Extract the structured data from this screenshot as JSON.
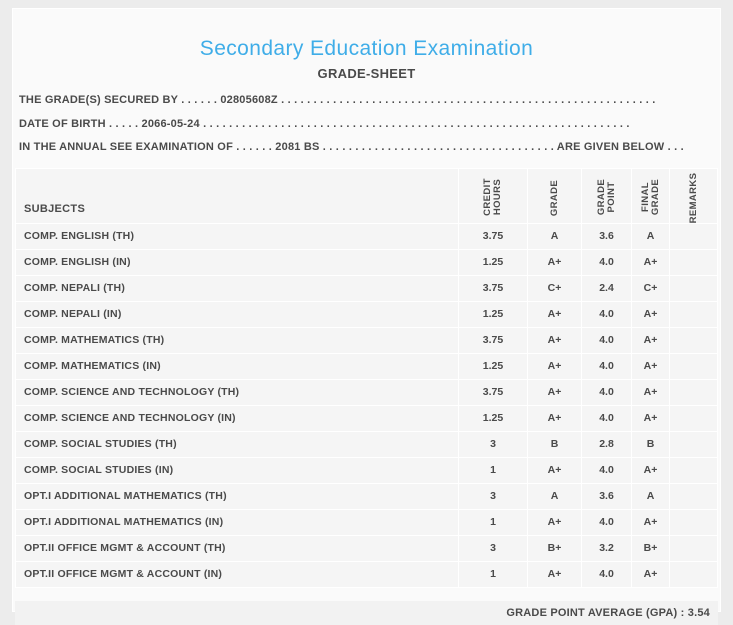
{
  "header": {
    "title": "Secondary Education Examination",
    "subtitle": "GRADE-SHEET"
  },
  "info_lines": [
    "THE GRADE(S) SECURED BY . . . . . . 02805608Z . . . . . . . . . . . . . . . . . . . . . . . . . . . . . . . . . . . . . . . . . . . . . . . . . . . . . . . . . .",
    "DATE OF BIRTH . . . . . 2066-05-24 . . . . . . . . . . . . . . . . . . . . . . . . . . . . . . . . . . . . . . . . . . . . . . . . . . . . . . . . . . . . . . . . . .",
    "IN THE ANNUAL SEE EXAMINATION OF . . . . . . 2081 BS . . . . . . . . . . . . . . . . . . . . . . . . . . . . . . . . . . . . ARE GIVEN BELOW . . ."
  ],
  "table": {
    "columns": [
      {
        "key": "subjects",
        "label": "SUBJECTS"
      },
      {
        "key": "credit-hours",
        "label": "CREDIT HOURS"
      },
      {
        "key": "grade",
        "label": "GRADE"
      },
      {
        "key": "grade-point",
        "label": "GRADE POINT"
      },
      {
        "key": "final-grade",
        "label": "FINAL GRADE"
      },
      {
        "key": "remarks",
        "label": "REMARKS"
      }
    ],
    "rows": [
      {
        "subject": "COMP. ENGLISH (TH)",
        "credit_hours": "3.75",
        "grade": "A",
        "grade_point": "3.6",
        "final_grade": "A",
        "remarks": ""
      },
      {
        "subject": "COMP. ENGLISH (IN)",
        "credit_hours": "1.25",
        "grade": "A+",
        "grade_point": "4.0",
        "final_grade": "A+",
        "remarks": ""
      },
      {
        "subject": "COMP. NEPALI (TH)",
        "credit_hours": "3.75",
        "grade": "C+",
        "grade_point": "2.4",
        "final_grade": "C+",
        "remarks": ""
      },
      {
        "subject": "COMP. NEPALI (IN)",
        "credit_hours": "1.25",
        "grade": "A+",
        "grade_point": "4.0",
        "final_grade": "A+",
        "remarks": ""
      },
      {
        "subject": "COMP. MATHEMATICS (TH)",
        "credit_hours": "3.75",
        "grade": "A+",
        "grade_point": "4.0",
        "final_grade": "A+",
        "remarks": ""
      },
      {
        "subject": "COMP. MATHEMATICS (IN)",
        "credit_hours": "1.25",
        "grade": "A+",
        "grade_point": "4.0",
        "final_grade": "A+",
        "remarks": ""
      },
      {
        "subject": "COMP. SCIENCE AND TECHNOLOGY (TH)",
        "credit_hours": "3.75",
        "grade": "A+",
        "grade_point": "4.0",
        "final_grade": "A+",
        "remarks": ""
      },
      {
        "subject": "COMP. SCIENCE AND TECHNOLOGY (IN)",
        "credit_hours": "1.25",
        "grade": "A+",
        "grade_point": "4.0",
        "final_grade": "A+",
        "remarks": ""
      },
      {
        "subject": "COMP. SOCIAL STUDIES (TH)",
        "credit_hours": "3",
        "grade": "B",
        "grade_point": "2.8",
        "final_grade": "B",
        "remarks": ""
      },
      {
        "subject": "COMP. SOCIAL STUDIES (IN)",
        "credit_hours": "1",
        "grade": "A+",
        "grade_point": "4.0",
        "final_grade": "A+",
        "remarks": ""
      },
      {
        "subject": "OPT.I ADDITIONAL MATHEMATICS (TH)",
        "credit_hours": "3",
        "grade": "A",
        "grade_point": "3.6",
        "final_grade": "A",
        "remarks": ""
      },
      {
        "subject": "OPT.I ADDITIONAL MATHEMATICS (IN)",
        "credit_hours": "1",
        "grade": "A+",
        "grade_point": "4.0",
        "final_grade": "A+",
        "remarks": ""
      },
      {
        "subject": "OPT.II OFFICE MGMT & ACCOUNT (TH)",
        "credit_hours": "3",
        "grade": "B+",
        "grade_point": "3.2",
        "final_grade": "B+",
        "remarks": ""
      },
      {
        "subject": "OPT.II OFFICE MGMT & ACCOUNT (IN)",
        "credit_hours": "1",
        "grade": "A+",
        "grade_point": "4.0",
        "final_grade": "A+",
        "remarks": ""
      }
    ]
  },
  "footer": {
    "gpa_text": "GRADE POINT AVERAGE (GPA) : 3.54"
  },
  "colors": {
    "accent_title": "#3fade8",
    "page_background": "#ececec",
    "card_background": "#fafafa",
    "cell_background": "#f5f5f5",
    "text": "#4a4a4a"
  }
}
